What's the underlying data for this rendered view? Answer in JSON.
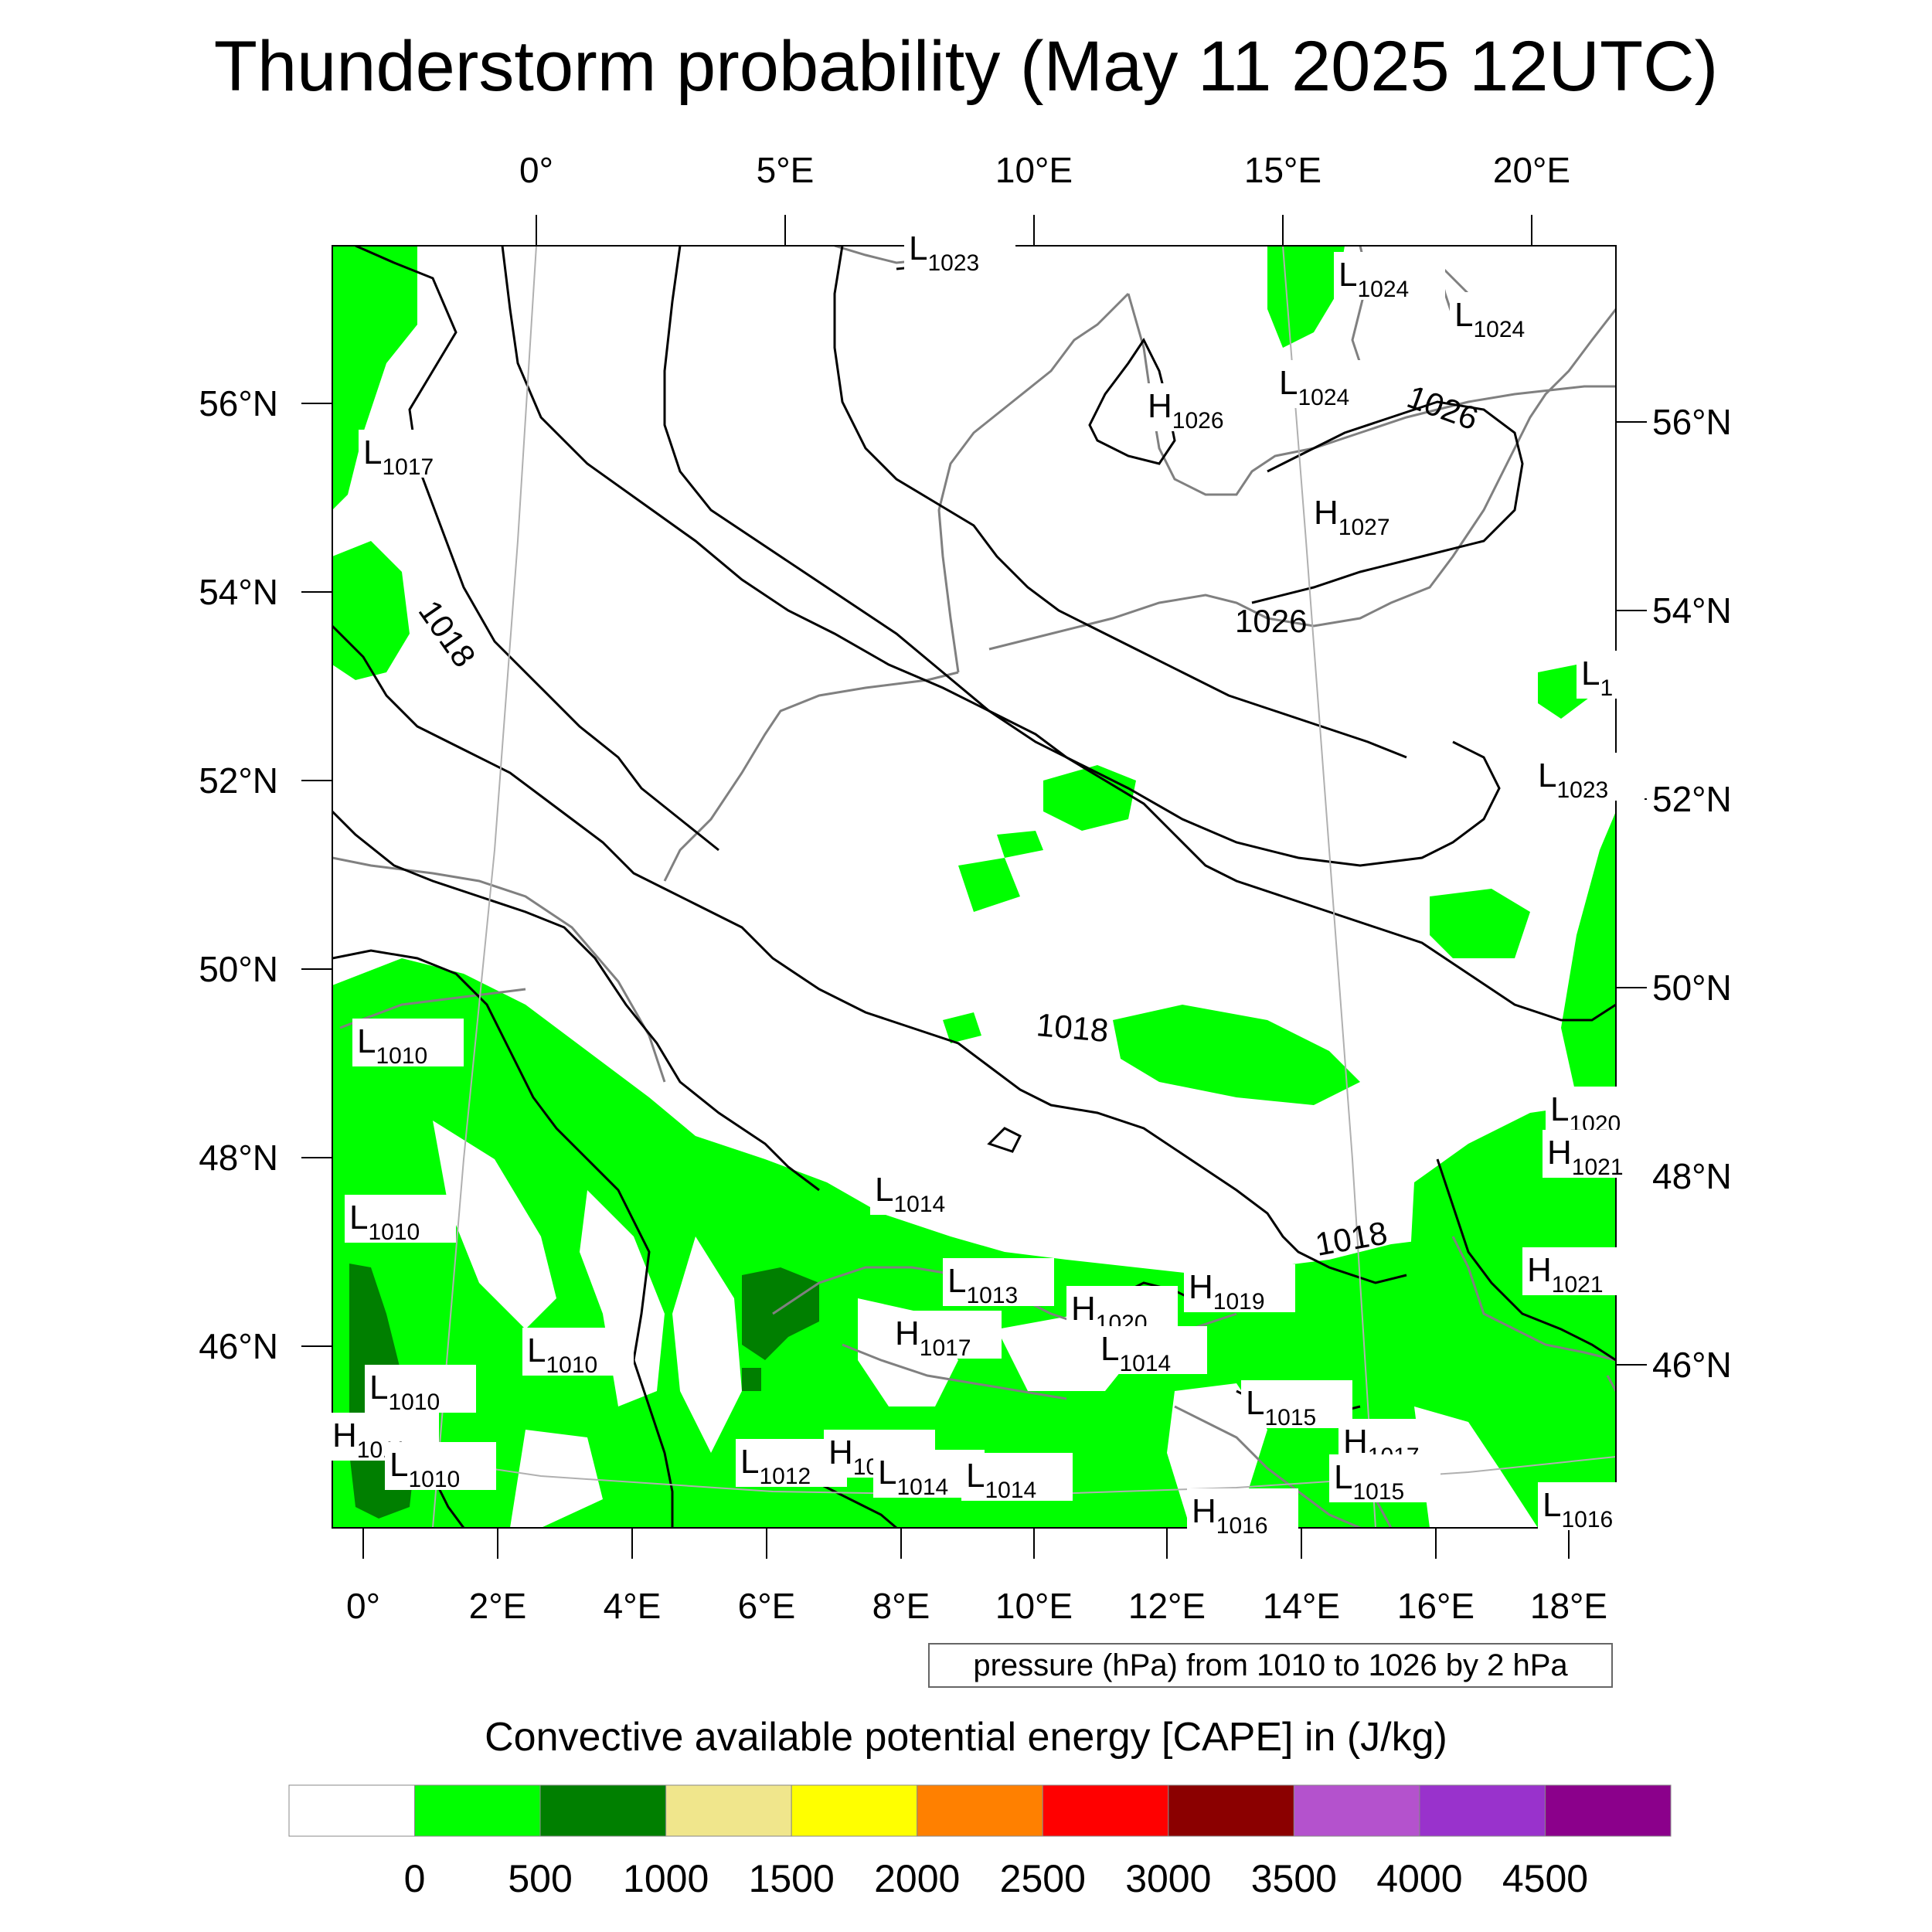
{
  "title": "Thunderstorm probability (May 11 2025 12UTC)",
  "map": {
    "top_lon_labels": [
      "0°",
      "5°E",
      "10°E",
      "15°E",
      "20°E"
    ],
    "bottom_lon_labels": [
      "0°",
      "2°E",
      "4°E",
      "6°E",
      "8°E",
      "10°E",
      "12°E",
      "14°E",
      "16°E",
      "18°E"
    ],
    "left_lat_labels": [
      "56°N",
      "54°N",
      "52°N",
      "50°N",
      "48°N",
      "46°N"
    ],
    "right_lat_labels": [
      "56°N",
      "54°N",
      "52°N",
      "50°N",
      "48°N",
      "46°N"
    ],
    "isobar_labels": [
      "1018",
      "1018",
      "1018",
      "1026",
      "1026"
    ],
    "pressure_centers": [
      {
        "type": "L",
        "value": "1023"
      },
      {
        "type": "L",
        "value": "1024"
      },
      {
        "type": "L",
        "value": "1024"
      },
      {
        "type": "L",
        "value": "1024"
      },
      {
        "type": "H",
        "value": "1026"
      },
      {
        "type": "H",
        "value": "1027"
      },
      {
        "type": "L",
        "value": "1017"
      },
      {
        "type": "L",
        "value": "1"
      },
      {
        "type": "L",
        "value": "1023"
      },
      {
        "type": "L",
        "value": "1010"
      },
      {
        "type": "L",
        "value": "1020"
      },
      {
        "type": "H",
        "value": "1021"
      },
      {
        "type": "L",
        "value": "1014"
      },
      {
        "type": "L",
        "value": "1010"
      },
      {
        "type": "H",
        "value": "1021"
      },
      {
        "type": "L",
        "value": "1013"
      },
      {
        "type": "H",
        "value": "1019"
      },
      {
        "type": "H",
        "value": "1020"
      },
      {
        "type": "H",
        "value": "1017"
      },
      {
        "type": "L",
        "value": "1014"
      },
      {
        "type": "L",
        "value": "1010"
      },
      {
        "type": "L",
        "value": "1010"
      },
      {
        "type": "L",
        "value": "1015"
      },
      {
        "type": "H",
        "value": "1011"
      },
      {
        "type": "L",
        "value": "1010"
      },
      {
        "type": "H",
        "value": "1017"
      },
      {
        "type": "L",
        "value": "1015"
      },
      {
        "type": "L",
        "value": "1012"
      },
      {
        "type": "H",
        "value": "1017"
      },
      {
        "type": "L",
        "value": "1014"
      },
      {
        "type": "L",
        "value": "1014"
      },
      {
        "type": "H",
        "value": "1016"
      },
      {
        "type": "L",
        "value": "1016"
      }
    ],
    "note": "pressure (hPa) from 1010 to 1026 by 2 hPa"
  },
  "colorbar": {
    "title": "Convective available potential energy [CAPE] in (J/kg)",
    "colors": [
      "#ffffff",
      "#00ff00",
      "#007f00",
      "#f0e68c",
      "#ffff00",
      "#ff8000",
      "#ff0000",
      "#8b0000",
      "#b452cd",
      "#9932cc",
      "#8b008b"
    ],
    "tick_labels": [
      "0",
      "500",
      "1000",
      "1500",
      "2000",
      "2500",
      "3000",
      "3500",
      "4000",
      "4500"
    ]
  },
  "colors": {
    "cape_0_500": "#00ff00",
    "cape_500_1000": "#007f00",
    "coastline": "#808080",
    "isobar": "#000000"
  }
}
